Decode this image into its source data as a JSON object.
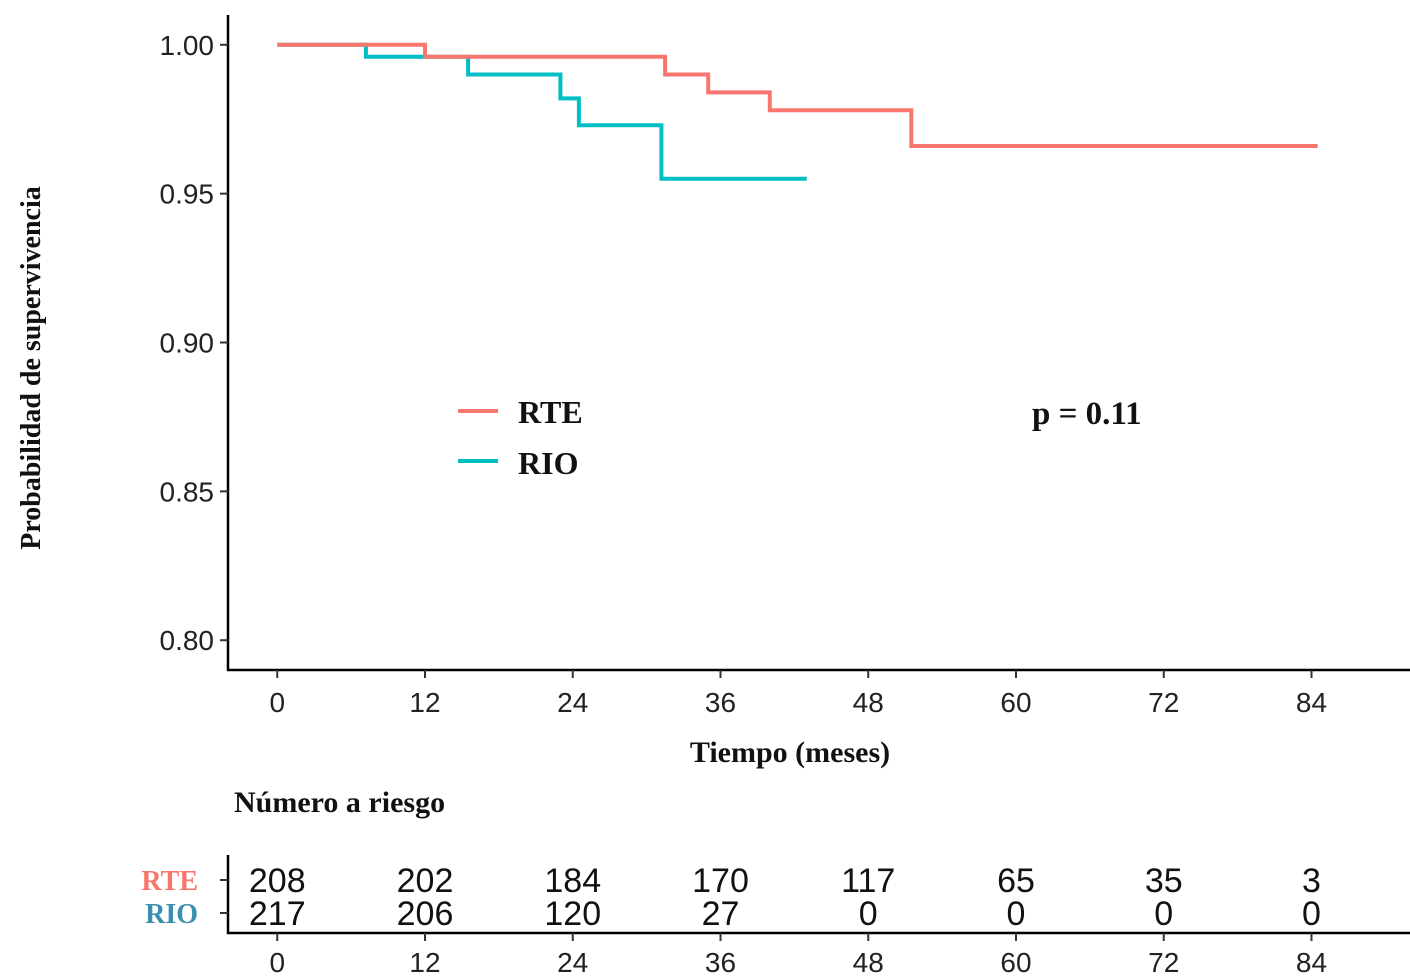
{
  "chart_data": {
    "type": "line",
    "step": true,
    "xlabel": "Tiempo (meses)",
    "ylabel": "Probabilidad de supervivencia",
    "xlim": [
      -4,
      92
    ],
    "ylim": [
      0.79,
      1.01
    ],
    "x_ticks": [
      0,
      12,
      24,
      36,
      48,
      60,
      72,
      84
    ],
    "y_ticks": [
      0.8,
      0.85,
      0.9,
      0.95,
      1.0
    ],
    "y_tick_labels": [
      "0.80",
      "0.85",
      "0.90",
      "0.95",
      "1.00"
    ],
    "annotation": "p = 0.11",
    "legend_position": "center-left",
    "series": [
      {
        "name": "RTE",
        "color": "#f8766d",
        "points": [
          [
            0,
            1.0
          ],
          [
            12,
            0.996
          ],
          [
            31.5,
            0.99
          ],
          [
            35,
            0.984
          ],
          [
            40,
            0.978
          ],
          [
            51.5,
            0.966
          ],
          [
            84.5,
            0.966
          ]
        ]
      },
      {
        "name": "RIO",
        "color": "#00bfc4",
        "points": [
          [
            0,
            1.0
          ],
          [
            7.2,
            0.996
          ],
          [
            15.5,
            0.99
          ],
          [
            23,
            0.982
          ],
          [
            24.5,
            0.973
          ],
          [
            31.2,
            0.955
          ],
          [
            43,
            0.955
          ]
        ]
      }
    ]
  },
  "risk_table": {
    "title": "Número a riesgo",
    "x_ticks": [
      0,
      12,
      24,
      36,
      48,
      60,
      72,
      84
    ],
    "rows": [
      {
        "name": "RTE",
        "color": "#f8766d",
        "counts": [
          208,
          202,
          184,
          170,
          117,
          65,
          35,
          3
        ]
      },
      {
        "name": "RIO",
        "color": "#3a8fb0",
        "counts": [
          217,
          206,
          120,
          27,
          0,
          0,
          0,
          0
        ]
      }
    ]
  }
}
